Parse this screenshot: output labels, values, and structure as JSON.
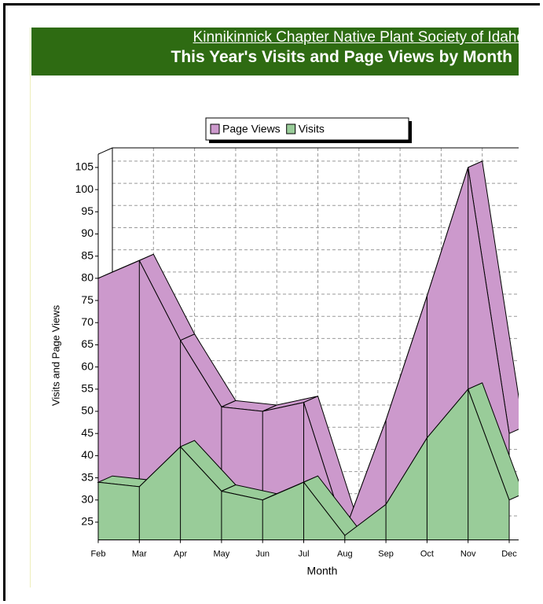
{
  "header": {
    "link": "Kinnikinnick Chapter Native Plant Society of Idaho",
    "title": "This Year's Visits and Page Views by Month"
  },
  "chart_data": {
    "type": "area",
    "x_label": "Month",
    "y_label": "Visits and Page Views",
    "categories": [
      "Feb",
      "Mar",
      "Apr",
      "May",
      "Jun",
      "Jul",
      "Aug",
      "Sep",
      "Oct",
      "Nov",
      "Dec"
    ],
    "series": [
      {
        "name": "Page Views",
        "color": "#cc99cc",
        "values": [
          80,
          84,
          66,
          51,
          50,
          52,
          23,
          48,
          76,
          105,
          45
        ]
      },
      {
        "name": "Visits",
        "color": "#99cc99",
        "values": [
          34,
          33,
          42,
          32,
          30,
          34,
          22,
          29,
          44,
          55,
          30
        ]
      }
    ],
    "ylim": [
      21,
      108
    ],
    "yticks": [
      25,
      30,
      35,
      40,
      45,
      50,
      55,
      60,
      65,
      70,
      75,
      80,
      85,
      90,
      95,
      100,
      105
    ],
    "grid": true,
    "legend": "top"
  }
}
